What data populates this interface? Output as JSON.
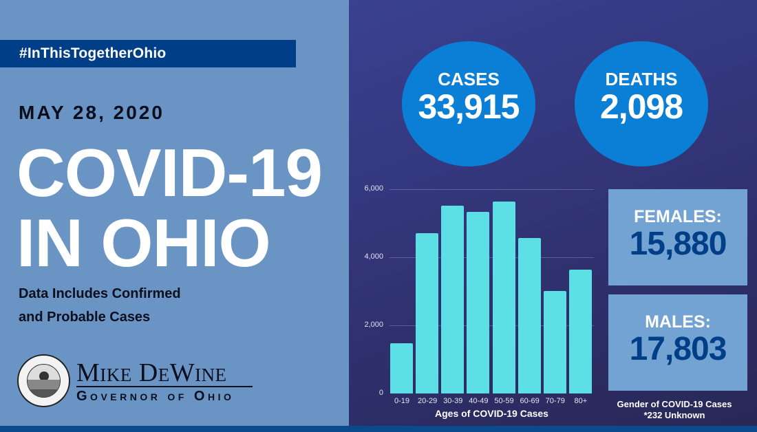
{
  "header": {
    "hashtag": "#InThisTogetherOhio",
    "date": "MAY 28, 2020",
    "title_line1": "COVID-19",
    "title_line2": "IN OHIO",
    "subtitle_line1": "Data Includes Confirmed",
    "subtitle_line2": "and Probable Cases"
  },
  "branding": {
    "seal_icon": "ohio-governor-seal",
    "name": "Mike DeWine",
    "role": "Governor of Ohio"
  },
  "stats": {
    "cases": {
      "label": "CASES",
      "value": "33,915"
    },
    "deaths": {
      "label": "DEATHS",
      "value": "2,098"
    }
  },
  "gender": {
    "females": {
      "label": "FEMALES:",
      "value": "15,880"
    },
    "males": {
      "label": "MALES:",
      "value": "17,803"
    },
    "caption_line1": "Gender of COVID-19 Cases",
    "caption_line2": "*232 Unknown"
  },
  "colors": {
    "left_bg": "#6a94c4",
    "right_bg": "#323578",
    "hashtag_bg": "#003f87",
    "circle": "#0b7fd6",
    "bar": "#5ce0e6",
    "gender_box": "#72a3d2",
    "gender_value": "#003f87",
    "bottom_bar": "#0b4a8c"
  },
  "chart_data": {
    "type": "bar",
    "title": "",
    "xlabel": "Ages of COVID-19 Cases",
    "ylabel": "",
    "categories": [
      "0-19",
      "20-29",
      "30-39",
      "40-49",
      "50-59",
      "60-69",
      "70-79",
      "80+"
    ],
    "values": [
      1470,
      4710,
      5510,
      5340,
      5630,
      4570,
      3020,
      3640
    ],
    "ylim": [
      0,
      6000
    ],
    "yticks": [
      "0",
      "2,000",
      "4,000",
      "6,000"
    ],
    "grid": true,
    "legend": null
  }
}
